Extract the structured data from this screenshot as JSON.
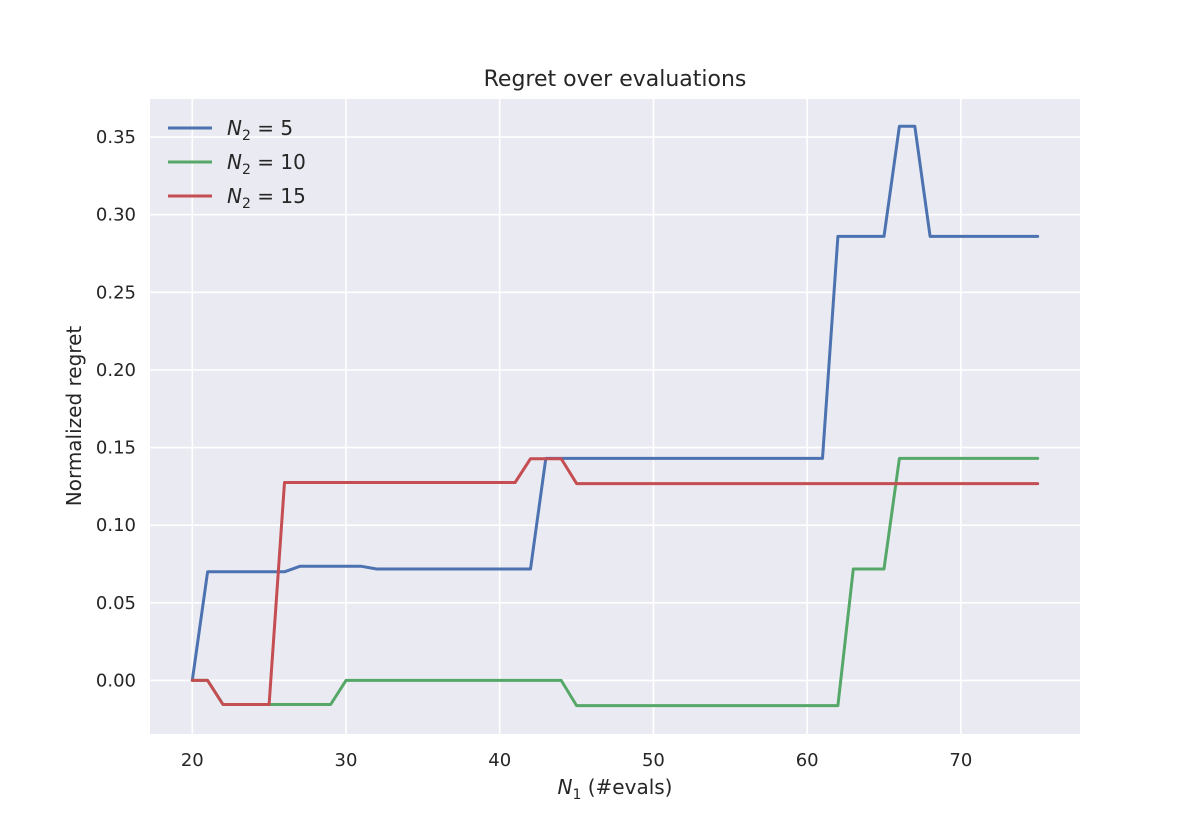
{
  "chart_data": {
    "type": "line",
    "title": "Regret over evaluations",
    "xlabel": {
      "main": "N",
      "sub": "1",
      "suffix": " (#evals)"
    },
    "ylabel": "Normalized regret",
    "xlim": [
      17.25,
      77.75
    ],
    "ylim": [
      -0.0345,
      0.3745
    ],
    "xticks": [
      20,
      30,
      40,
      50,
      60,
      70
    ],
    "xtick_labels": [
      "20",
      "30",
      "40",
      "50",
      "60",
      "70"
    ],
    "yticks": [
      0.0,
      0.05,
      0.1,
      0.15,
      0.2,
      0.25,
      0.3,
      0.35
    ],
    "ytick_labels": [
      "0.00",
      "0.05",
      "0.10",
      "0.15",
      "0.20",
      "0.25",
      "0.30",
      "0.35"
    ],
    "grid": true,
    "legend_position": "top-left",
    "background": "#eaeaf2",
    "series": [
      {
        "legend": {
          "var": "N",
          "sub": "2",
          "rest": " = 5"
        },
        "color": "#4c72b0",
        "points": [
          [
            20,
            0.0
          ],
          [
            21,
            0.07
          ],
          [
            26,
            0.07
          ],
          [
            27,
            0.0735
          ],
          [
            31,
            0.0735
          ],
          [
            32,
            0.0718
          ],
          [
            42,
            0.0718
          ],
          [
            43,
            0.143
          ],
          [
            61,
            0.143
          ],
          [
            62,
            0.286
          ],
          [
            65,
            0.286
          ],
          [
            66,
            0.357
          ],
          [
            67,
            0.357
          ],
          [
            68,
            0.286
          ],
          [
            75,
            0.286
          ]
        ]
      },
      {
        "legend": {
          "var": "N",
          "sub": "2",
          "rest": " = 10"
        },
        "color": "#55a868",
        "points": [
          [
            20,
            0.0
          ],
          [
            21,
            0.0
          ],
          [
            22,
            -0.0155
          ],
          [
            29,
            -0.0155
          ],
          [
            30,
            0.0
          ],
          [
            44,
            0.0
          ],
          [
            45,
            -0.0162
          ],
          [
            62,
            -0.0162
          ],
          [
            63,
            0.0718
          ],
          [
            65,
            0.0718
          ],
          [
            66,
            0.143
          ],
          [
            75,
            0.143
          ]
        ]
      },
      {
        "legend": {
          "var": "N",
          "sub": "2",
          "rest": " = 15"
        },
        "color": "#c44e52",
        "points": [
          [
            20,
            0.0
          ],
          [
            21,
            0.0
          ],
          [
            22,
            -0.0155
          ],
          [
            25,
            -0.0155
          ],
          [
            26,
            0.1275
          ],
          [
            41,
            0.1275
          ],
          [
            42,
            0.1428
          ],
          [
            44,
            0.1428
          ],
          [
            45,
            0.1268
          ],
          [
            75,
            0.1268
          ]
        ]
      }
    ]
  }
}
